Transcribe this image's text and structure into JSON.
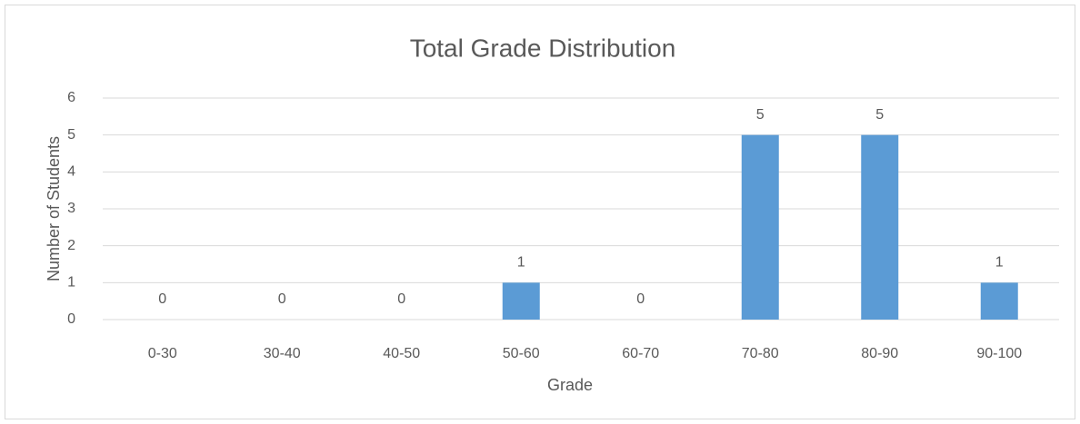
{
  "chart_data": {
    "type": "bar",
    "title": "Total Grade Distribution",
    "x_label": "Grade",
    "y_label": "Number of Students",
    "categories": [
      "0-30",
      "30-40",
      "40-50",
      "50-60",
      "60-70",
      "70-80",
      "80-90",
      "90-100"
    ],
    "values": [
      0,
      0,
      0,
      1,
      0,
      5,
      5,
      1
    ],
    "color": "#5b9bd5",
    "ylim": [
      0,
      6
    ],
    "yticks": [
      0,
      1,
      2,
      3,
      4,
      5,
      6
    ],
    "grid": true
  }
}
